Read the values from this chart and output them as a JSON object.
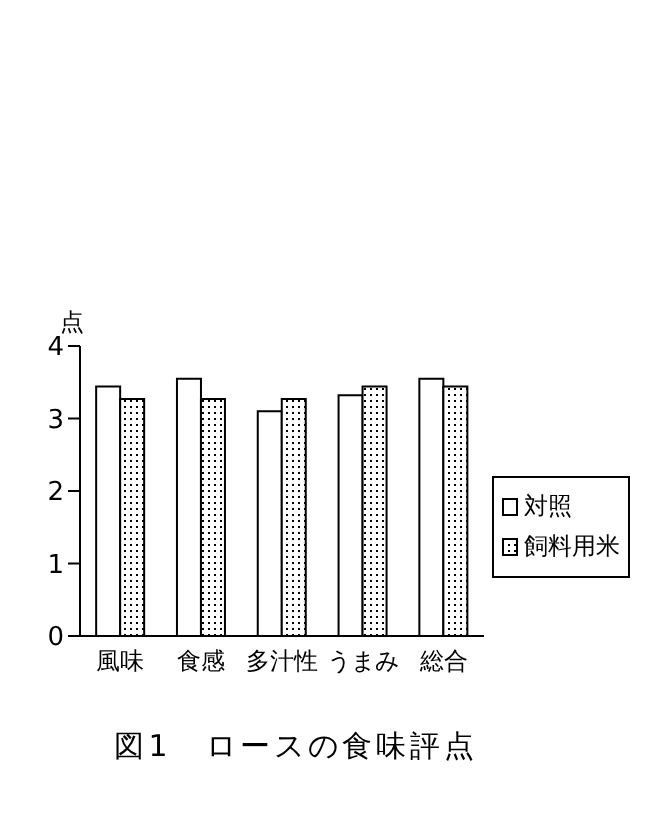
{
  "chart_data": {
    "type": "bar",
    "title": "図1　ロースの食味評点",
    "ylabel": "点",
    "categories": [
      "風味",
      "食感",
      "多汁性",
      "うまみ",
      "総合"
    ],
    "series": [
      {
        "name": "対照",
        "color": "#ffffff",
        "values": [
          3.44,
          3.55,
          3.1,
          3.32,
          3.55
        ]
      },
      {
        "name": "飼料用米",
        "color": "#000000",
        "values": [
          3.27,
          3.27,
          3.27,
          3.44,
          3.44
        ]
      }
    ],
    "ylim": [
      0,
      4
    ],
    "yticks": [
      0,
      1,
      2,
      3,
      4
    ],
    "grid": false,
    "legend": "right"
  }
}
